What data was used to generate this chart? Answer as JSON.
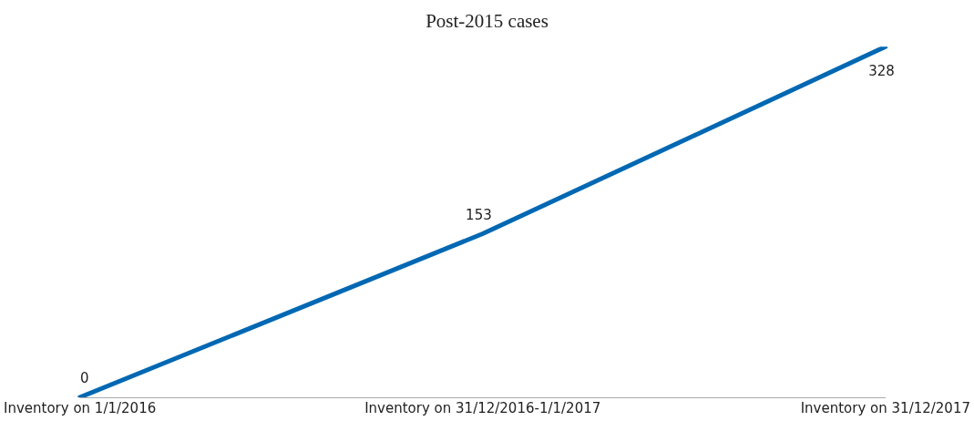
{
  "chart_data": {
    "type": "line",
    "title": "Post-2015 cases",
    "categories": [
      "Inventory on 1/1/2016",
      "Inventory on 31/12/2016-1/1/2017",
      "Inventory on 31/12/2017"
    ],
    "series": [
      {
        "color": "#0068b3",
        "values": [
          0,
          153,
          328
        ]
      }
    ],
    "data_labels": true
  }
}
